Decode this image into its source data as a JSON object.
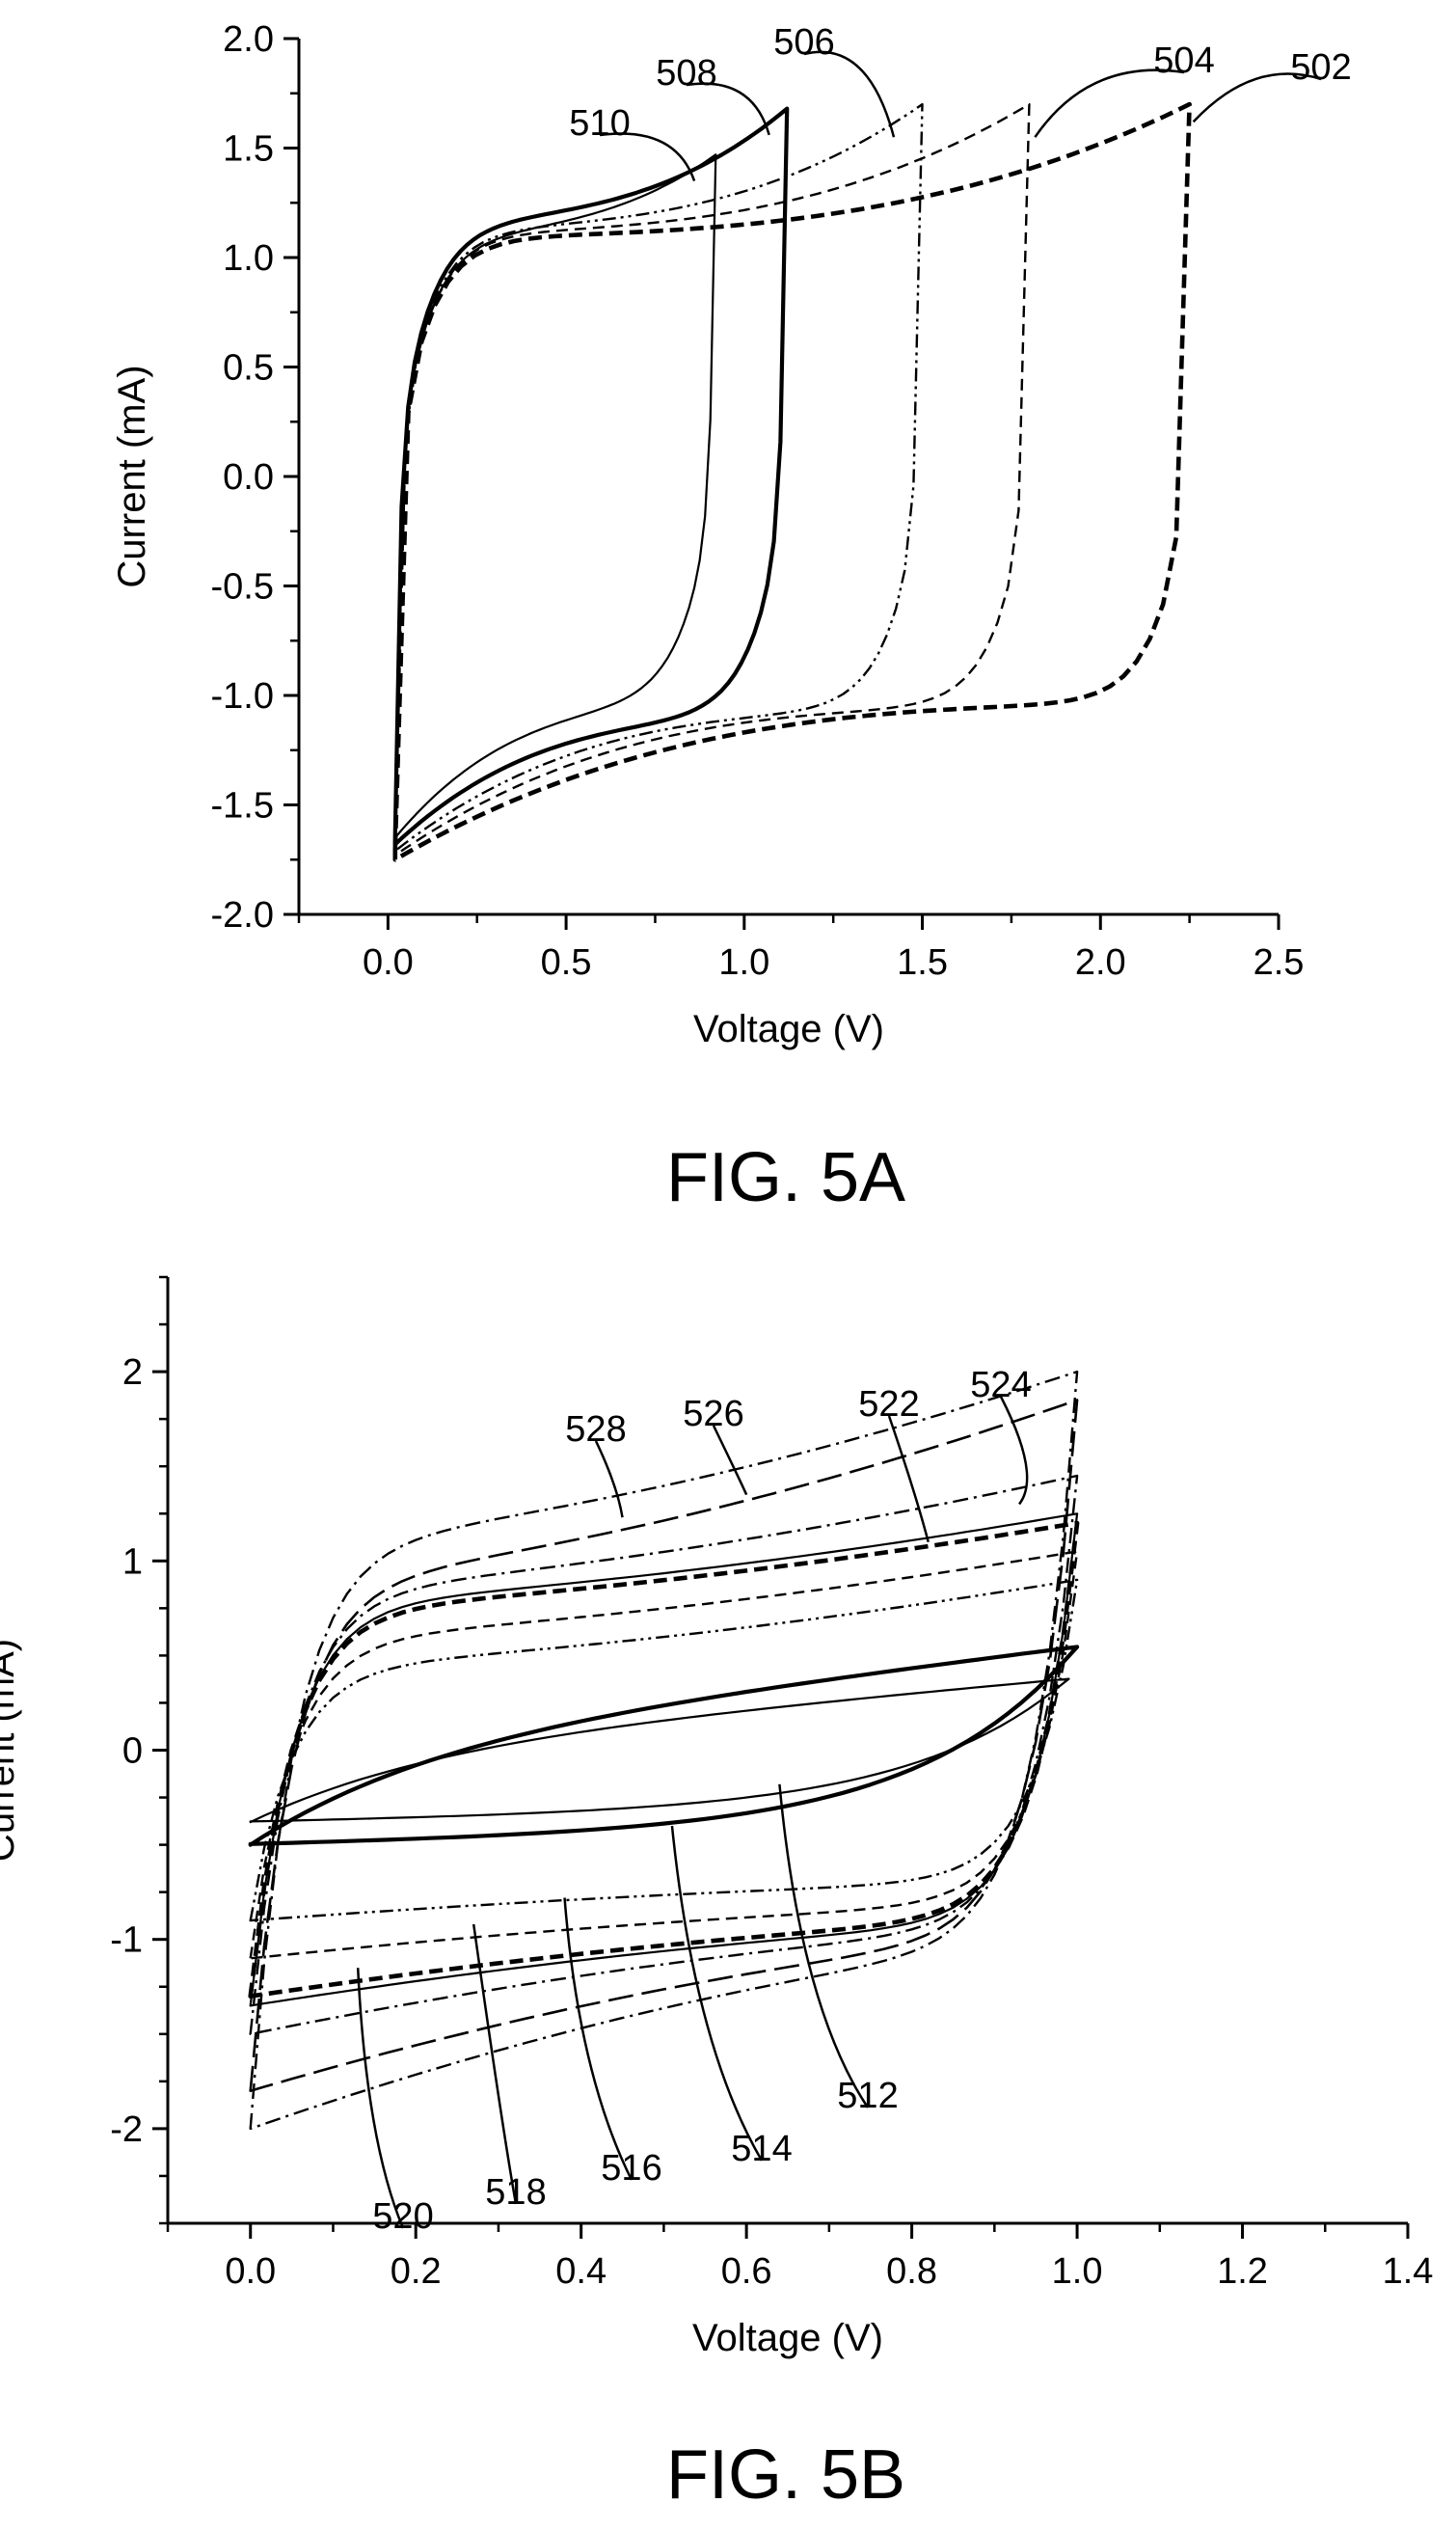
{
  "chart_data": [
    {
      "type": "line",
      "caption": "FIG. 5A",
      "xlabel": "Voltage (V)",
      "ylabel": "Current (mA)",
      "xlim": [
        -0.25,
        2.5
      ],
      "ylim": [
        -2.0,
        2.0
      ],
      "x_ticks": [
        "0.0",
        "0.5",
        "1.0",
        "1.5",
        "2.0",
        "2.5"
      ],
      "y_ticks": [
        "-2.0",
        "-1.5",
        "-1.0",
        "-0.5",
        "0.0",
        "0.5",
        "1.0",
        "1.5",
        "2.0"
      ],
      "grid": false,
      "series": [
        {
          "label": "502",
          "vmax": 2.25,
          "ipeak": 1.7,
          "ibase": 1.1,
          "imin": -1.75,
          "style": "dash-heavy"
        },
        {
          "label": "504",
          "vmax": 1.8,
          "ipeak": 1.7,
          "ibase": 1.12,
          "imin": -1.73,
          "style": "dash"
        },
        {
          "label": "506",
          "vmax": 1.5,
          "ipeak": 1.7,
          "ibase": 1.14,
          "imin": -1.71,
          "style": "dash-dot-dot"
        },
        {
          "label": "508",
          "vmax": 1.12,
          "ipeak": 1.68,
          "ibase": 1.18,
          "imin": -1.68,
          "style": "solid-heavy"
        },
        {
          "label": "510",
          "vmax": 0.92,
          "ipeak": 1.47,
          "ibase": 1.12,
          "imin": -1.65,
          "style": "solid"
        }
      ]
    },
    {
      "type": "line",
      "caption": "FIG. 5B",
      "xlabel": "Voltage (V)",
      "ylabel": "Current (mA)",
      "xlim": [
        -0.1,
        1.4
      ],
      "ylim": [
        -2.5,
        2.5
      ],
      "x_ticks": [
        "0.0",
        "0.2",
        "0.4",
        "0.6",
        "0.8",
        "1.0",
        "1.2",
        "1.4"
      ],
      "y_ticks": [
        "-2",
        "-1",
        "0",
        "1",
        "2"
      ],
      "grid": false,
      "series": [
        {
          "label": "512",
          "top_start": 0.02,
          "top_end": 0.55,
          "bottom_start": -0.5,
          "bottom_end": -0.4,
          "vmax": 1.0,
          "style": "solid-heavy"
        },
        {
          "label": "514",
          "top_start": 0.0,
          "top_end": 0.38,
          "bottom_start": -0.38,
          "bottom_end": -0.3,
          "vmax": 0.99,
          "style": "solid"
        },
        {
          "label": "516",
          "top_start": 0.45,
          "top_end": 0.9,
          "bottom_start": -0.9,
          "bottom_end": -0.7,
          "vmax": 1.0,
          "style": "dash-dot-dot"
        },
        {
          "label": "518",
          "top_start": 0.6,
          "top_end": 1.05,
          "bottom_start": -1.1,
          "bottom_end": -0.82,
          "vmax": 1.0,
          "style": "dash"
        },
        {
          "label": "520",
          "top_start": 0.75,
          "top_end": 1.2,
          "bottom_start": -1.3,
          "bottom_end": -0.9,
          "vmax": 1.0,
          "style": "dash-heavy"
        },
        {
          "label": "522",
          "top_start": 0.78,
          "top_end": 1.25,
          "bottom_start": -1.35,
          "bottom_end": -0.92,
          "vmax": 1.0,
          "style": "solid"
        },
        {
          "label": "524",
          "top_start": 0.85,
          "top_end": 1.45,
          "bottom_start": -1.5,
          "bottom_end": -0.95,
          "vmax": 1.0,
          "style": "dash-dot"
        },
        {
          "label": "526",
          "top_start": 0.9,
          "top_end": 1.85,
          "bottom_start": -1.8,
          "bottom_end": -1.0,
          "vmax": 1.0,
          "style": "long-dash"
        },
        {
          "label": "528",
          "top_start": 1.1,
          "top_end": 2.0,
          "bottom_start": -2.0,
          "bottom_end": -1.05,
          "vmax": 1.0,
          "style": "dash-dot"
        }
      ]
    }
  ]
}
